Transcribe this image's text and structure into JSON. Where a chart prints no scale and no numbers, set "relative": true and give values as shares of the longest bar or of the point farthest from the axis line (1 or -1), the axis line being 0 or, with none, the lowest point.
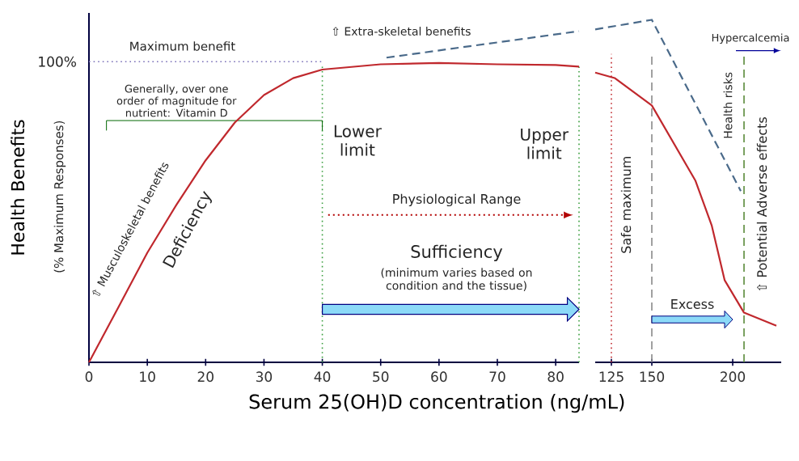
{
  "chart_data": [
    {
      "type": "line",
      "relative": true,
      "xlabel": "Serum 25(OH)D concentration (ng/mL)",
      "ylabel": "Health Benefits",
      "xlim": [
        0,
        84
      ],
      "xticks": [
        0,
        10,
        20,
        30,
        40,
        50,
        60,
        70,
        80
      ],
      "series": [
        {
          "color": "#c0282d",
          "line_style": "solid",
          "x": [
            0,
            5,
            10,
            15,
            20,
            25,
            30,
            35,
            40,
            50,
            60,
            70,
            80,
            84
          ],
          "values": [
            0,
            0.165,
            0.331,
            0.476,
            0.61,
            0.724,
            0.807,
            0.858,
            0.884,
            0.9,
            0.904,
            0.9,
            0.898,
            0.893
          ]
        },
        {
          "color": "#4a6a8a",
          "line_style": "dashed",
          "x": [
            51,
            84
          ],
          "values": [
            0.92,
            1.0
          ]
        }
      ],
      "ref_lines": [
        {
          "axis": "x",
          "value": 40,
          "color": "#3a9e3e",
          "line_style": "dotted"
        },
        {
          "axis": "x",
          "value": 84,
          "color": "#3a9e3e",
          "line_style": "dotted"
        },
        {
          "axis": "y",
          "value": 0.908,
          "color": "#7a70b8",
          "line_style": "dotted"
        }
      ],
      "annotations": [
        "Maximum benefit",
        "100%",
        "Generally, over one order of magnitude for nutrient: Vitamin D",
        "⇧ Extra-skeletal benefits",
        "Lower limit",
        "Upper limit",
        "Physiological Range",
        "Sufficiency",
        "(minimum varies based on condition and the tissue)",
        "⇧ Musculoskeletal benefits",
        "Deficiency",
        "(% Maximum Responses)"
      ]
    },
    {
      "type": "line",
      "relative": true,
      "xlim": [
        115,
        230
      ],
      "xticks": [
        125,
        150,
        200
      ],
      "series": [
        {
          "color": "#c0282d",
          "line_style": "solid",
          "x": [
            115,
            127,
            150,
            177,
            187,
            195,
            207,
            227
          ],
          "values": [
            0.846,
            0.83,
            0.75,
            0.53,
            0.4,
            0.24,
            0.145,
            0.107
          ]
        },
        {
          "color": "#4a6a8a",
          "line_style": "dashed",
          "x": [
            115,
            150,
            205
          ],
          "values": [
            0.972,
            1.0,
            0.5
          ]
        }
      ],
      "ref_lines": [
        {
          "axis": "x",
          "value": 125,
          "color": "#c0282d",
          "line_style": "dotted"
        },
        {
          "axis": "x",
          "value": 150,
          "color": "#8a8a8a",
          "line_style": "dashed"
        },
        {
          "axis": "x",
          "value": 207,
          "color": "#5a8a3a",
          "line_style": "dashed"
        }
      ],
      "annotations": [
        "Excess",
        "Safe maximum",
        "Hypercalcemia",
        "Health risks",
        "⇧ Potential Adverse effects"
      ]
    }
  ]
}
